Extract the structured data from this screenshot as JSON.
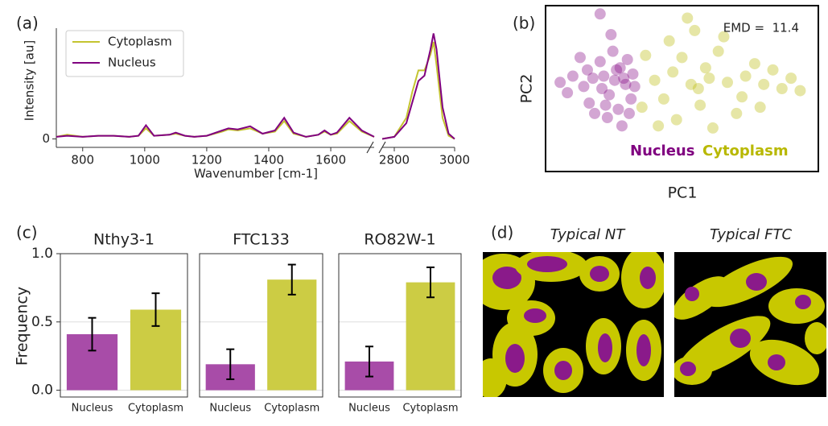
{
  "chart_data": [
    {
      "type": "line",
      "panel": "(a)",
      "ylabel": "Intensity [au]",
      "xlabel": "Wavenumber [cm-1]",
      "legend": "upper left",
      "xlim": [
        715,
        1740
      ],
      "xticks": [
        800,
        1000,
        1200,
        1400,
        1600
      ],
      "ylim": [
        -0.08,
        1.05
      ],
      "yticks": [
        0
      ],
      "x": [
        715,
        750,
        800,
        850,
        900,
        950,
        980,
        1004,
        1030,
        1080,
        1100,
        1130,
        1160,
        1200,
        1250,
        1270,
        1300,
        1340,
        1380,
        1420,
        1450,
        1480,
        1520,
        1560,
        1580,
        1600,
        1620,
        1660,
        1700,
        1740
      ],
      "series": [
        {
          "name": "Cytoplasm",
          "color": "#c4c430",
          "values": [
            0.02,
            0.04,
            0.02,
            0.03,
            0.03,
            0.02,
            0.03,
            0.1,
            0.03,
            0.04,
            0.05,
            0.03,
            0.02,
            0.03,
            0.07,
            0.09,
            0.08,
            0.1,
            0.05,
            0.07,
            0.17,
            0.05,
            0.02,
            0.04,
            0.07,
            0.04,
            0.05,
            0.17,
            0.07,
            0.02
          ]
        },
        {
          "name": "Nucleus",
          "color": "#800080",
          "values": [
            0.02,
            0.03,
            0.02,
            0.03,
            0.03,
            0.02,
            0.03,
            0.13,
            0.03,
            0.04,
            0.06,
            0.03,
            0.02,
            0.03,
            0.08,
            0.1,
            0.09,
            0.12,
            0.05,
            0.08,
            0.2,
            0.06,
            0.02,
            0.04,
            0.08,
            0.04,
            0.06,
            0.2,
            0.08,
            0.02
          ]
        }
      ]
    },
    {
      "type": "line",
      "xlim": [
        2760,
        3000
      ],
      "xticks": [
        2800,
        3000
      ],
      "ylim": [
        -0.08,
        1.05
      ],
      "x": [
        2760,
        2800,
        2840,
        2860,
        2880,
        2900,
        2920,
        2930,
        2940,
        2960,
        2980,
        3000
      ],
      "series": [
        {
          "color": "#c4c430",
          "values": [
            0.0,
            0.02,
            0.2,
            0.45,
            0.65,
            0.65,
            0.8,
            0.92,
            0.7,
            0.2,
            0.03,
            0.0
          ]
        },
        {
          "color": "#800080",
          "values": [
            0.0,
            0.02,
            0.15,
            0.35,
            0.55,
            0.6,
            0.85,
            1.0,
            0.85,
            0.3,
            0.05,
            0.0
          ]
        }
      ]
    },
    {
      "type": "scatter",
      "panel": "(b)",
      "xlabel": "PC1",
      "ylabel": "PC2",
      "annotation": "EMD =  11.4",
      "xlim": [
        -5,
        10
      ],
      "ylim": [
        -4,
        4
      ],
      "series": [
        {
          "name": "Nucleus",
          "color": "#800080",
          "x": [
            -1.2,
            -1.8,
            -0.6,
            -2.4,
            -1.5,
            -0.9,
            -2.9,
            -0.3,
            -1.0,
            -2.0,
            -3.5,
            -0.5,
            -1.6,
            -4.2,
            -2.6,
            -0.2,
            -1.3,
            -2.0,
            -3.1,
            -0.8,
            -1.9,
            -1.1,
            -2.3,
            -0.4,
            -3.8,
            -1.4,
            -0.7,
            -2.7,
            -1.7,
            -0.1
          ],
          "values": [
            0.4,
            0.6,
            0.2,
            0.5,
            -0.3,
            1.0,
            0.1,
            -0.5,
            -1.0,
            1.3,
            0.6,
            1.4,
            -1.4,
            0.3,
            -0.7,
            0.7,
            1.8,
            3.6,
            1.5,
            -1.8,
            0.0,
            0.9,
            -1.2,
            -1.2,
            -0.2,
            2.6,
            0.5,
            0.9,
            -0.8,
            0.1
          ]
        },
        {
          "name": "Cytoplasm",
          "color": "#b8b800",
          "x": [
            1.0,
            2.0,
            3.0,
            4.0,
            1.5,
            2.5,
            3.5,
            5.0,
            6.0,
            7.0,
            8.0,
            9.0,
            4.5,
            3.2,
            2.2,
            5.5,
            6.5,
            0.5,
            1.2,
            4.2,
            7.5,
            2.8,
            3.8,
            5.8,
            0.3,
            1.8,
            6.8,
            8.5,
            4.8,
            3.4
          ],
          "values": [
            0.4,
            0.8,
            0.2,
            0.5,
            -0.5,
            1.5,
            -0.8,
            0.3,
            0.6,
            0.2,
            0.0,
            -0.1,
            1.8,
            2.8,
            -1.5,
            -1.2,
            1.2,
            1.6,
            -1.8,
            -1.9,
            0.9,
            3.4,
            1.0,
            -0.4,
            -0.9,
            2.3,
            -0.9,
            0.5,
            2.5,
            0.0
          ]
        }
      ]
    },
    {
      "type": "bar",
      "panel": "(c)",
      "title": "Nthy3-1",
      "ylabel": "Frequency",
      "categories": [
        "Nucleus",
        "Cytoplasm"
      ],
      "values": [
        0.41,
        0.59
      ],
      "errors": [
        0.12,
        0.12
      ],
      "colors": [
        "#a84ca8",
        "#cccc44"
      ],
      "ylim": [
        -0.05,
        1.0
      ],
      "yticks": [
        {
          "value": 0,
          "label": "0.0"
        },
        {
          "value": 0.5,
          "label": "0.5"
        },
        {
          "value": 1,
          "label": "1.0"
        }
      ],
      "grid": true
    },
    {
      "type": "bar",
      "title": "FTC133",
      "categories": [
        "Nucleus",
        "Cytoplasm"
      ],
      "values": [
        0.19,
        0.81
      ],
      "errors": [
        0.11,
        0.11
      ],
      "colors": [
        "#a84ca8",
        "#cccc44"
      ],
      "ylim": [
        -0.05,
        1.0
      ],
      "yticks": [
        0,
        0.5,
        1
      ],
      "ytick_labels": false,
      "grid": true
    },
    {
      "type": "bar",
      "title": "RO82W-1",
      "categories": [
        "Nucleus",
        "Cytoplasm"
      ],
      "values": [
        0.21,
        0.79
      ],
      "errors": [
        0.11,
        0.11
      ],
      "colors": [
        "#a84ca8",
        "#cccc44"
      ],
      "ylim": [
        -0.05,
        1.0
      ],
      "yticks": [
        0,
        0.5,
        1
      ],
      "ytick_labels": false,
      "grid": true
    }
  ],
  "panel_d": {
    "label": "(d)",
    "titles": [
      "Typical NT",
      "Typical FTC"
    ]
  }
}
